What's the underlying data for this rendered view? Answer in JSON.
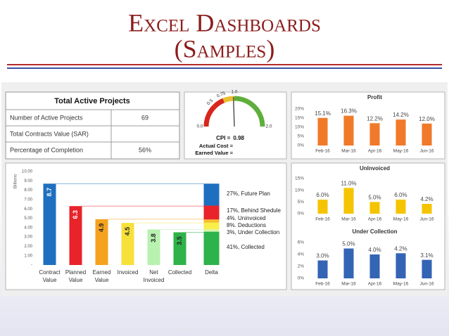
{
  "title": [
    "Excel Dashboards",
    "(Samples)"
  ],
  "table": {
    "header": "Total Active Projects",
    "rows": [
      [
        "Number of Active Projects",
        "69"
      ],
      [
        "Total Contracts Value (SAR)"
      ],
      [
        "Percentage of Completion",
        "56%"
      ]
    ]
  },
  "chart_data": [
    {
      "type": "gauge",
      "label": "CPI =",
      "value": 0.98,
      "lim": [
        0,
        2
      ],
      "ticks": [
        {
          "value": 0,
          "label": "0.0"
        },
        0.5,
        0.75,
        {
          "value": 1,
          "label": "1.0"
        },
        {
          "value": 2,
          "label": "2.0"
        }
      ],
      "band_colors": [
        "#d8261c",
        "#d8261c",
        "#e9bf2e",
        "#5fae3c"
      ],
      "needle_color": "#555555",
      "annotations": [
        "Actual Cost =",
        "Earned Value ="
      ]
    },
    {
      "type": "waterfall",
      "ylabel": "Billions",
      "categories": [
        "Contract Value",
        "Planned Value",
        "Earned Value",
        "Invoiced",
        "Net Invoiced",
        "Collected",
        "Delta"
      ],
      "values": [
        8.7,
        6.3,
        4.9,
        4.5,
        3.8,
        3.5,
        null
      ],
      "colors": [
        "#1f6fc0",
        "#e8232a",
        "#f5a21e",
        "#f7e03a",
        "#b8f2b0",
        "#2eb34a",
        null
      ],
      "value_label_colors": [
        "#ffffff",
        "#ffffff",
        "#222222",
        "#222222",
        "#222222",
        "#222222",
        null
      ],
      "ylim": [
        0,
        10
      ],
      "yticks": [
        {
          "value": 0,
          "label": "-"
        },
        {
          "value": 1,
          "label": "1.00"
        },
        {
          "value": 2,
          "label": "2.00"
        },
        {
          "value": 3,
          "label": "3.00"
        },
        {
          "value": 4,
          "label": "4.00"
        },
        {
          "value": 5,
          "label": "5.00"
        },
        {
          "value": 6,
          "label": "6.00"
        },
        {
          "value": 7,
          "label": "7.00"
        },
        {
          "value": 8,
          "label": "8.00"
        },
        {
          "value": 9,
          "label": "9.00"
        },
        {
          "value": 10,
          "label": "10.00"
        }
      ],
      "delta": [
        {
          "label": "27%, Future Plan",
          "value": 27,
          "color": "#1f6fc0"
        },
        {
          "label": "17%, Behind Shedule",
          "value": 17,
          "color": "#e8232a"
        },
        {
          "label": "4%. Uninvoiced",
          "value": 4,
          "color": "#f5c02e"
        },
        {
          "label": "8%. Deductions",
          "value": 8,
          "color": "#f9ee4a"
        },
        {
          "label": "3%, Under Collection",
          "value": 3,
          "color": "#d8f5a8"
        },
        {
          "label": "41%, Collected",
          "value": 41,
          "color": "#2eb34a"
        }
      ]
    },
    {
      "type": "bar",
      "title": "Profit",
      "categories": [
        "Feb-16",
        "Mar-16",
        "Apr-16",
        "May-16",
        "Jun-16"
      ],
      "values": [
        15.1,
        16.3,
        12.2,
        14.2,
        12.0
      ],
      "value_labels": [
        "15.1%",
        "16.3%",
        "12.2%",
        "14.2%",
        "12.0%"
      ],
      "color": "#f07a2a",
      "ylim": [
        0,
        20
      ],
      "yticks": [
        {
          "value": 0,
          "label": "0%"
        },
        {
          "value": 5,
          "label": "5%"
        },
        {
          "value": 10,
          "label": "10%"
        },
        {
          "value": 15,
          "label": "15%"
        },
        {
          "value": 20,
          "label": "20%"
        }
      ]
    },
    {
      "type": "bar",
      "title": "UnInvoiced",
      "categories": [
        "Feb-16",
        "Mar-16",
        "Apr-16",
        "May-16",
        "Jun-16"
      ],
      "values": [
        6.0,
        11.0,
        5.0,
        6.0,
        4.2
      ],
      "value_labels": [
        "6.0%",
        "11.0%",
        "5.0%",
        "6.0%",
        "4.2%"
      ],
      "color": "#f5c400",
      "ylim": [
        0,
        15
      ],
      "yticks": [
        {
          "value": 0,
          "label": "0%"
        },
        {
          "value": 5,
          "label": "5%"
        },
        {
          "value": 10,
          "label": "10%"
        },
        {
          "value": 15,
          "label": "15%"
        }
      ]
    },
    {
      "type": "bar",
      "title": "Under Collection",
      "categories": [
        "Feb-16",
        "Mar-16",
        "Apr-16",
        "May-16",
        "Jun-16"
      ],
      "values": [
        3.0,
        5.0,
        4.0,
        4.2,
        3.1
      ],
      "value_labels": [
        "3.0%",
        "5.0%",
        "4.0%",
        "4.2%",
        "3.1%"
      ],
      "color": "#3464b4",
      "ylim": [
        0,
        6
      ],
      "yticks": [
        {
          "value": 0,
          "label": "0%"
        },
        {
          "value": 2,
          "label": "2%"
        },
        {
          "value": 4,
          "label": "4%"
        },
        {
          "value": 6,
          "label": "6%"
        }
      ]
    }
  ]
}
